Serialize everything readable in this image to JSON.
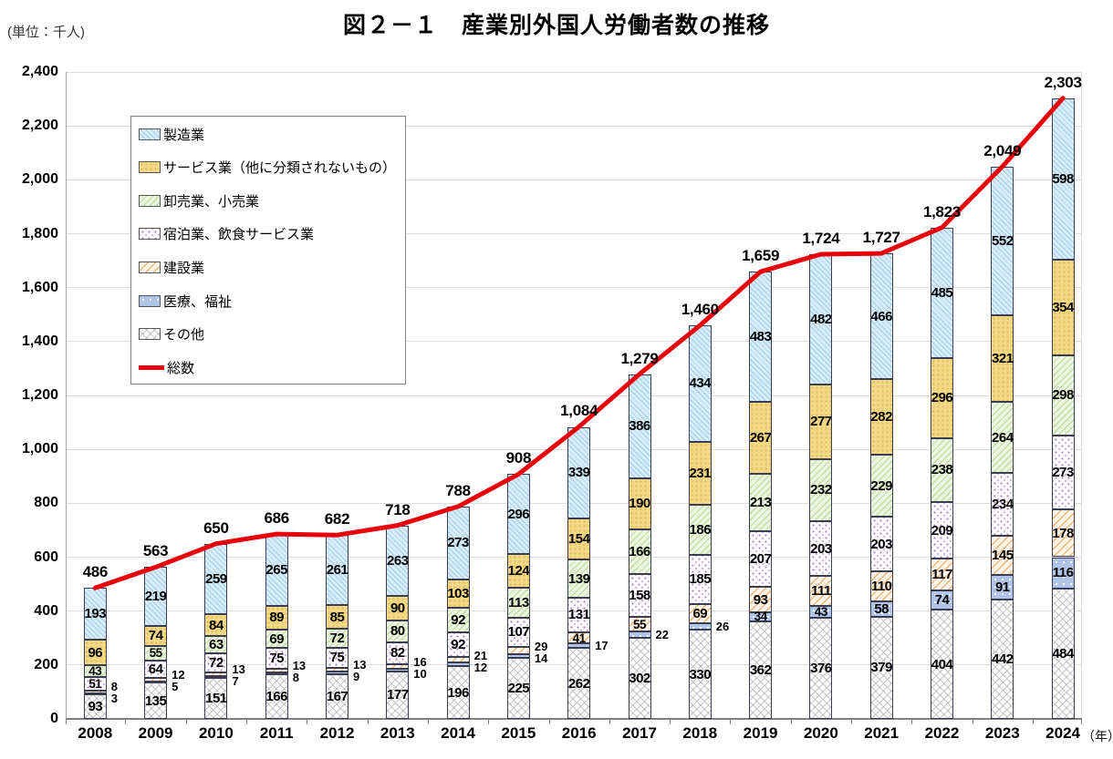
{
  "header": {
    "unit_label": "(単位：千人)",
    "title": "図２－１　産業別外国人労働者数の推移"
  },
  "chart_data": {
    "type": "bar",
    "stacked": true,
    "title": "図２－１　産業別外国人労働者数の推移",
    "unit": "千人",
    "categories": [
      "2008",
      "2009",
      "2010",
      "2011",
      "2012",
      "2013",
      "2014",
      "2015",
      "2016",
      "2017",
      "2018",
      "2019",
      "2020",
      "2021",
      "2022",
      "2023",
      "2024"
    ],
    "x_axis_unit_label": "（年）",
    "ylim": [
      0,
      2400
    ],
    "ytick_step": 200,
    "grid": true,
    "legend_position": "upper-left-inside",
    "series": [
      {
        "key": "others",
        "name": "その他",
        "pattern": "gray-lattice",
        "color": "#ffffff",
        "values": [
          93,
          135,
          151,
          166,
          167,
          177,
          196,
          225,
          262,
          302,
          330,
          362,
          376,
          379,
          404,
          442,
          484
        ]
      },
      {
        "key": "medical_welfare",
        "name": "医療、福祉",
        "pattern": "white-dots-on-blue",
        "color": "#afc4e6",
        "values": [
          3,
          5,
          7,
          8,
          9,
          10,
          12,
          14,
          17,
          22,
          26,
          34,
          43,
          58,
          74,
          91,
          116
        ]
      },
      {
        "key": "construction",
        "name": "建設業",
        "pattern": "orange-diagonal",
        "color": "#fdf5ea",
        "values": [
          8,
          12,
          13,
          13,
          13,
          16,
          21,
          29,
          41,
          55,
          69,
          93,
          111,
          110,
          117,
          145,
          178
        ]
      },
      {
        "key": "accommodation_food",
        "name": "宿泊業、飲食サービス業",
        "pattern": "purple-dots",
        "color": "#fdfcfe",
        "values": [
          51,
          64,
          72,
          75,
          75,
          82,
          92,
          107,
          131,
          158,
          185,
          207,
          203,
          203,
          209,
          234,
          273
        ]
      },
      {
        "key": "wholesale_retail",
        "name": "卸売業、小売業",
        "pattern": "green-diagonal",
        "color": "#ebf4de",
        "values": [
          43,
          55,
          63,
          69,
          72,
          80,
          92,
          113,
          139,
          166,
          186,
          213,
          232,
          229,
          238,
          264,
          298
        ]
      },
      {
        "key": "services",
        "name": "サービス業（他に分類されないもの）",
        "pattern": "gold-dots",
        "color": "#f3d986",
        "values": [
          96,
          74,
          84,
          89,
          85,
          90,
          103,
          124,
          154,
          190,
          231,
          267,
          277,
          282,
          296,
          321,
          354
        ]
      },
      {
        "key": "manufacturing",
        "name": "製造業",
        "pattern": "blue-diagonal",
        "color": "#d9edf8",
        "values": [
          193,
          219,
          259,
          265,
          261,
          263,
          273,
          296,
          339,
          386,
          434,
          483,
          482,
          466,
          485,
          552,
          598
        ]
      }
    ],
    "total_line": {
      "key": "total",
      "name": "総数",
      "color": "#e8000b",
      "values": [
        486,
        563,
        650,
        686,
        682,
        718,
        788,
        908,
        1084,
        1279,
        1460,
        1659,
        1724,
        1727,
        1823,
        2049,
        2303
      ],
      "labels": [
        "486",
        "563",
        "650",
        "686",
        "682",
        "718",
        "788",
        "908",
        "1,084",
        "1,279",
        "1,460",
        "1,659",
        "1,724",
        "1,727",
        "1,823",
        "2,049",
        "2,303"
      ]
    }
  },
  "legend": {
    "items": [
      {
        "key": "manufacturing",
        "label": "製造業"
      },
      {
        "key": "services",
        "label": "サービス業（他に分類されないもの）"
      },
      {
        "key": "wholesale_retail",
        "label": "卸売業、小売業"
      },
      {
        "key": "accommodation_food",
        "label": "宿泊業、飲食サービス業"
      },
      {
        "key": "construction",
        "label": "建設業"
      },
      {
        "key": "medical_welfare",
        "label": "医療、福祉"
      },
      {
        "key": "others",
        "label": "その他"
      },
      {
        "key": "total",
        "label": "総数"
      }
    ]
  }
}
